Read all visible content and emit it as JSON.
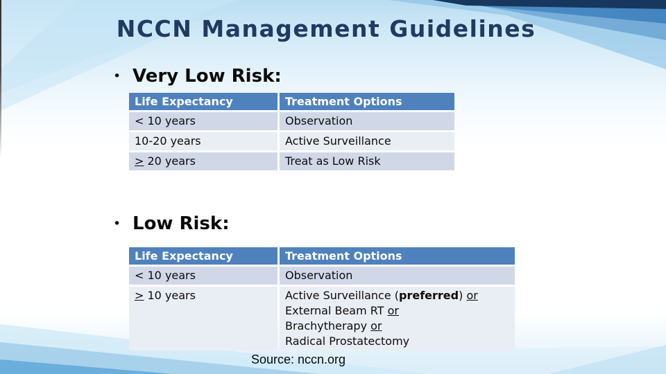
{
  "title": "NCCN Management Guidelines",
  "bullet_char": "•",
  "source": "Source: nccn.org",
  "colors": {
    "title_text": "#1F3B64",
    "table_header_bg": "#4F81BD",
    "table_header_text": "#FFFFFF",
    "row_band_dark": "#D0D8E8",
    "row_band_light": "#E9EDF4",
    "corner_navy": "#17375E",
    "corner_blue": "#2E74B5"
  },
  "sections": [
    {
      "heading": "Very Low Risk:",
      "table": {
        "headers": [
          "Life Expectancy",
          "Treatment Options"
        ],
        "rows": [
          {
            "cells": [
              {
                "lines": [
                  [
                    {
                      "t": "< 10 years"
                    }
                  ]
                ]
              },
              {
                "lines": [
                  [
                    {
                      "t": "Observation"
                    }
                  ]
                ]
              }
            ]
          },
          {
            "cells": [
              {
                "lines": [
                  [
                    {
                      "t": "10-20 years"
                    }
                  ]
                ]
              },
              {
                "lines": [
                  [
                    {
                      "t": "Active Surveillance"
                    }
                  ]
                ]
              }
            ]
          },
          {
            "cells": [
              {
                "lines": [
                  [
                    {
                      "t": ">",
                      "u": true
                    },
                    {
                      "t": " 20 years"
                    }
                  ]
                ]
              },
              {
                "lines": [
                  [
                    {
                      "t": "Treat as Low Risk"
                    }
                  ]
                ]
              }
            ]
          }
        ]
      }
    },
    {
      "heading": "Low Risk:",
      "table": {
        "headers": [
          "Life Expectancy",
          "Treatment Options"
        ],
        "rows": [
          {
            "cells": [
              {
                "lines": [
                  [
                    {
                      "t": "< 10 years"
                    }
                  ]
                ]
              },
              {
                "lines": [
                  [
                    {
                      "t": "Observation"
                    }
                  ]
                ]
              }
            ]
          },
          {
            "cells": [
              {
                "lines": [
                  [
                    {
                      "t": ">",
                      "u": true
                    },
                    {
                      "t": " 10 years"
                    }
                  ]
                ]
              },
              {
                "lines": [
                  [
                    {
                      "t": "Active Surveillance ("
                    },
                    {
                      "t": "preferred",
                      "b": true
                    },
                    {
                      "t": ") "
                    },
                    {
                      "t": "or",
                      "u": true
                    }
                  ],
                  [
                    {
                      "t": "External Beam RT "
                    },
                    {
                      "t": "or",
                      "u": true
                    }
                  ],
                  [
                    {
                      "t": "Brachytherapy "
                    },
                    {
                      "t": "or",
                      "u": true
                    }
                  ],
                  [
                    {
                      "t": "Radical Prostatectomy"
                    }
                  ]
                ]
              }
            ]
          }
        ]
      }
    }
  ]
}
